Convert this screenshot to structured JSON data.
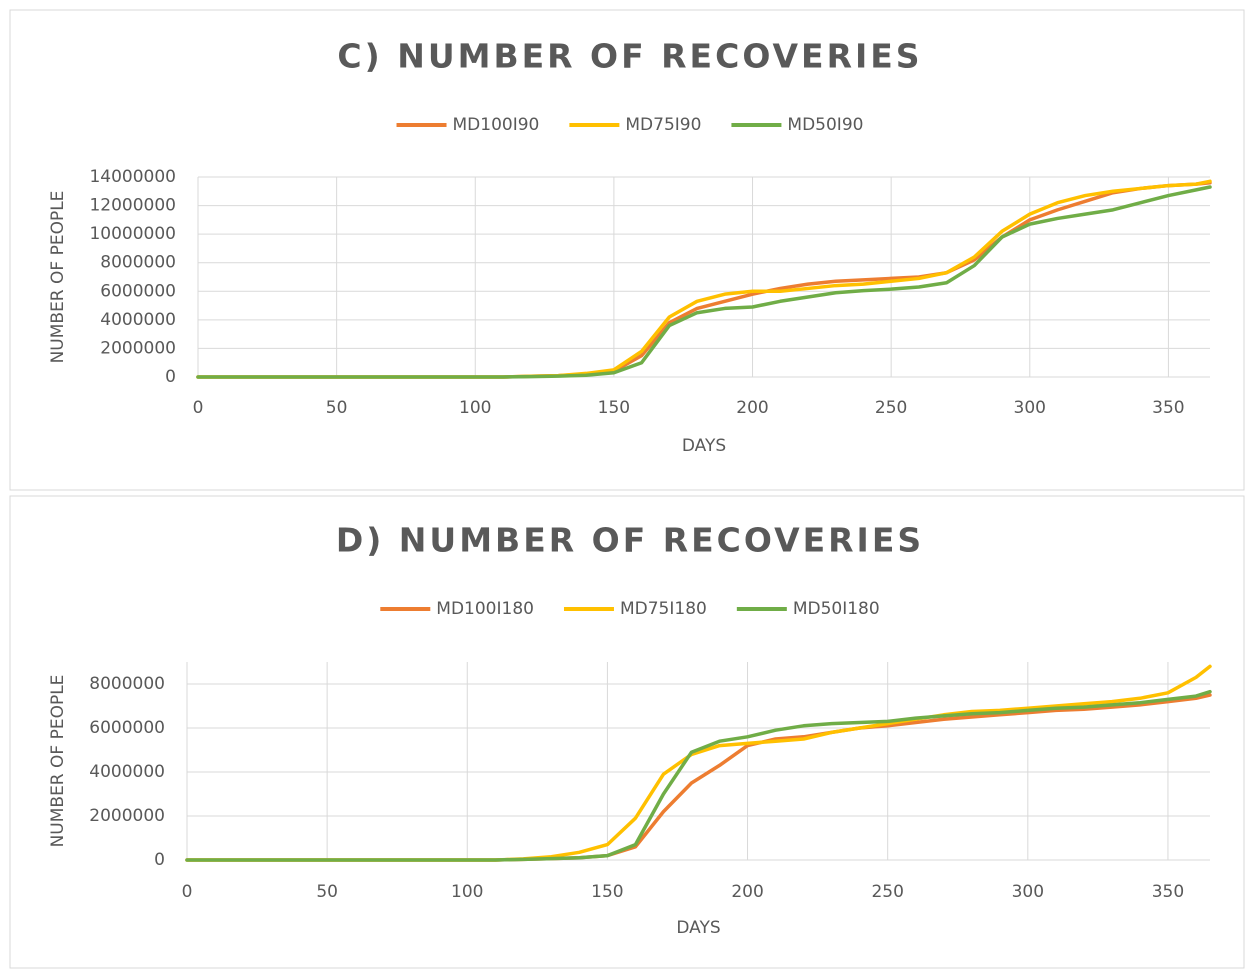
{
  "chart_data": [
    {
      "type": "line",
      "title": "C) NUMBER OF RECOVERIES",
      "x_label": "DAYS",
      "y_label": "NUMBER OF PEOPLE",
      "x": [
        0,
        10,
        20,
        30,
        40,
        50,
        60,
        70,
        80,
        90,
        100,
        110,
        120,
        130,
        140,
        150,
        160,
        170,
        180,
        190,
        200,
        210,
        220,
        230,
        240,
        250,
        260,
        270,
        280,
        290,
        300,
        310,
        320,
        330,
        340,
        350,
        360,
        365
      ],
      "series": [
        {
          "name": "MD100I90",
          "color": "#ed7d31",
          "values": [
            0,
            0,
            0,
            0,
            0,
            0,
            0,
            0,
            0,
            0,
            0,
            0,
            50000,
            100000,
            200000,
            400000,
            1500000,
            3800000,
            4800000,
            5300000,
            5800000,
            6200000,
            6500000,
            6700000,
            6800000,
            6900000,
            7000000,
            7300000,
            8200000,
            9800000,
            11000000,
            11700000,
            12300000,
            12900000,
            13200000,
            13400000,
            13500000,
            13600000
          ]
        },
        {
          "name": "MD75I90",
          "color": "#ffc000",
          "values": [
            0,
            0,
            0,
            0,
            0,
            0,
            0,
            0,
            0,
            0,
            0,
            0,
            50000,
            100000,
            250000,
            500000,
            1800000,
            4200000,
            5300000,
            5800000,
            6000000,
            6000000,
            6200000,
            6400000,
            6500000,
            6700000,
            6900000,
            7300000,
            8400000,
            10200000,
            11400000,
            12200000,
            12700000,
            13000000,
            13200000,
            13400000,
            13500000,
            13700000
          ]
        },
        {
          "name": "MD50I90",
          "color": "#70ad47",
          "values": [
            0,
            0,
            0,
            0,
            0,
            0,
            0,
            0,
            0,
            0,
            0,
            0,
            30000,
            60000,
            120000,
            300000,
            1000000,
            3600000,
            4500000,
            4800000,
            4900000,
            5300000,
            5600000,
            5900000,
            6050000,
            6150000,
            6300000,
            6600000,
            7800000,
            9800000,
            10700000,
            11100000,
            11400000,
            11700000,
            12200000,
            12700000,
            13100000,
            13300000
          ]
        }
      ],
      "xlim": [
        0,
        365
      ],
      "xticks": [
        0,
        50,
        100,
        150,
        200,
        250,
        300,
        350
      ],
      "ylim": [
        0,
        14000000
      ],
      "yticks": [
        0,
        2000000,
        4000000,
        6000000,
        8000000,
        10000000,
        12000000,
        14000000
      ],
      "grid": true,
      "legend": "top"
    },
    {
      "type": "line",
      "title": "D) NUMBER OF RECOVERIES",
      "x_label": "DAYS",
      "y_label": "NUMBER OF PEOPLE",
      "x": [
        0,
        10,
        20,
        30,
        40,
        50,
        60,
        70,
        80,
        90,
        100,
        110,
        120,
        130,
        140,
        150,
        160,
        170,
        180,
        190,
        200,
        210,
        220,
        230,
        240,
        250,
        260,
        270,
        280,
        290,
        300,
        310,
        320,
        330,
        340,
        350,
        360,
        365
      ],
      "series": [
        {
          "name": "MD100I180",
          "color": "#ed7d31",
          "values": [
            0,
            0,
            0,
            0,
            0,
            0,
            0,
            0,
            0,
            0,
            0,
            0,
            30000,
            60000,
            100000,
            200000,
            600000,
            2200000,
            3500000,
            4300000,
            5200000,
            5500000,
            5600000,
            5800000,
            6000000,
            6100000,
            6250000,
            6400000,
            6500000,
            6600000,
            6700000,
            6800000,
            6850000,
            6950000,
            7050000,
            7200000,
            7350000,
            7500000
          ]
        },
        {
          "name": "MD75I180",
          "color": "#ffc000",
          "values": [
            0,
            0,
            0,
            0,
            0,
            0,
            0,
            0,
            0,
            0,
            0,
            0,
            50000,
            150000,
            350000,
            700000,
            1900000,
            3900000,
            4800000,
            5200000,
            5300000,
            5400000,
            5500000,
            5800000,
            6000000,
            6200000,
            6400000,
            6600000,
            6750000,
            6800000,
            6900000,
            7000000,
            7100000,
            7200000,
            7350000,
            7600000,
            8300000,
            8800000
          ]
        },
        {
          "name": "MD50I180",
          "color": "#70ad47",
          "values": [
            0,
            0,
            0,
            0,
            0,
            0,
            0,
            0,
            0,
            0,
            0,
            0,
            30000,
            60000,
            100000,
            200000,
            700000,
            3000000,
            4900000,
            5400000,
            5600000,
            5900000,
            6100000,
            6200000,
            6250000,
            6300000,
            6450000,
            6550000,
            6650000,
            6700000,
            6800000,
            6900000,
            6950000,
            7050000,
            7150000,
            7300000,
            7450000,
            7650000
          ]
        }
      ],
      "xlim": [
        0,
        365
      ],
      "xticks": [
        0,
        50,
        100,
        150,
        200,
        250,
        300,
        350
      ],
      "ylim": [
        0,
        9000000
      ],
      "yticks": [
        0,
        2000000,
        4000000,
        6000000,
        8000000
      ],
      "grid": true,
      "legend": "top"
    }
  ]
}
